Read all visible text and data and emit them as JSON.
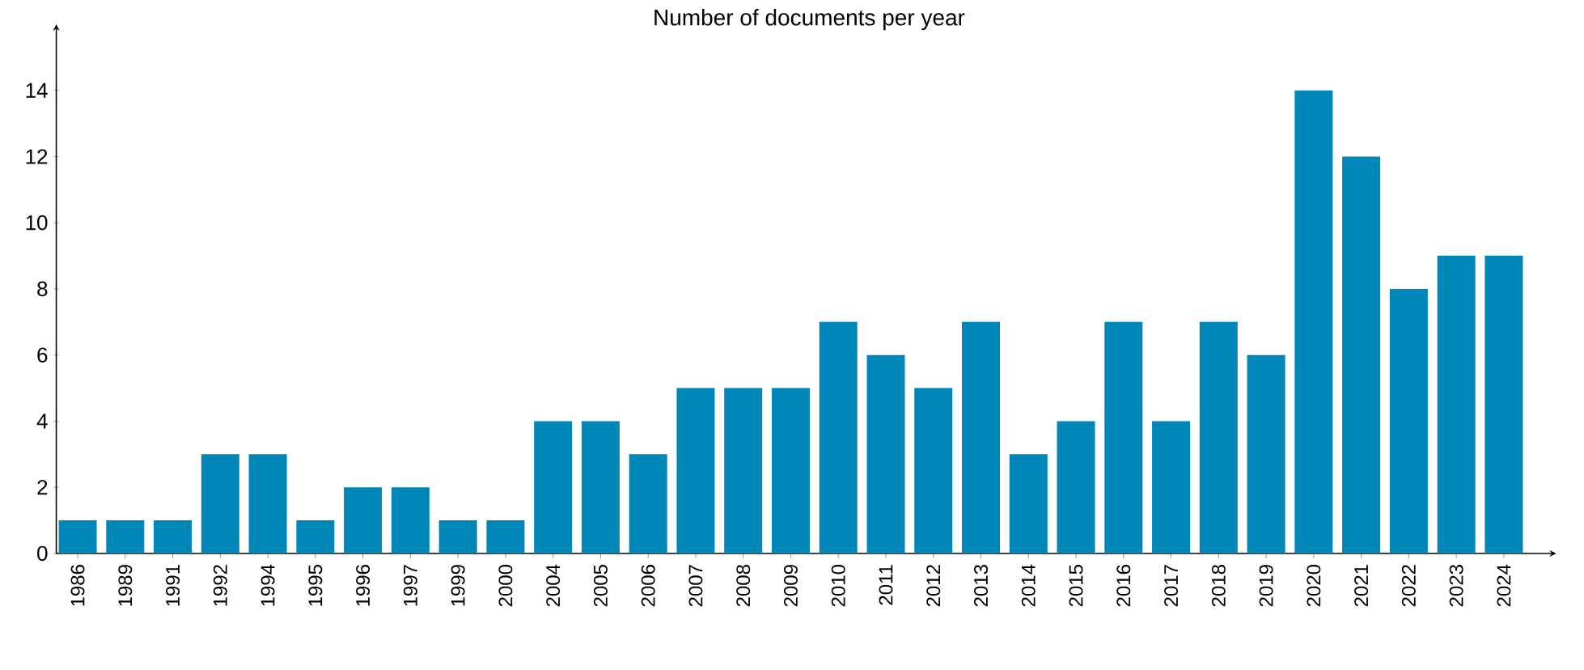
{
  "chart_data": {
    "type": "bar",
    "title": "Number of documents per year",
    "categories": [
      "1986",
      "1989",
      "1991",
      "1992",
      "1994",
      "1995",
      "1996",
      "1997",
      "1999",
      "2000",
      "2004",
      "2005",
      "2006",
      "2007",
      "2008",
      "2009",
      "2010",
      "2011",
      "2012",
      "2013",
      "2014",
      "2015",
      "2016",
      "2017",
      "2018",
      "2019",
      "2020",
      "2021",
      "2022",
      "2023",
      "2024"
    ],
    "values": [
      1,
      1,
      1,
      3,
      3,
      1,
      2,
      2,
      1,
      1,
      4,
      4,
      3,
      5,
      5,
      5,
      7,
      6,
      5,
      7,
      3,
      4,
      7,
      4,
      7,
      6,
      14,
      12,
      8,
      9,
      9
    ],
    "color": "#0087b8",
    "ylim": [
      0,
      16
    ],
    "yticks": [
      0,
      2,
      4,
      6,
      8,
      10,
      12,
      14
    ],
    "grid": false
  }
}
